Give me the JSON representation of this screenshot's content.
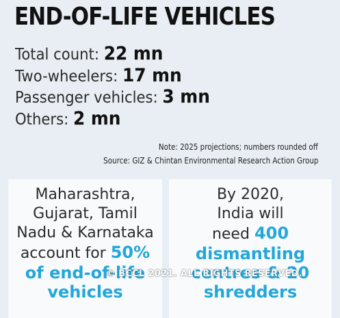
{
  "title": "END-OF-LIFE VEHICLES",
  "stats": [
    {
      "label": "Total count: ",
      "value": "22 mn"
    },
    {
      "label": "Two-wheelers: ",
      "value": "17 mn"
    },
    {
      "label": "Passenger vehicles: ",
      "value": "3 mn"
    },
    {
      "label": "Others: ",
      "value": "2 mn"
    }
  ],
  "note": "Note: 2025 projections; numbers rounded off",
  "source": "Source: GIZ & Chintan Environmental Research Action Group",
  "left_panel": {
    "line1": "Maharashtra,",
    "line2": "Gujarat, Tamil",
    "line3": "Nadu & Karnataka",
    "line4_prefix": "account for ",
    "line4_highlight": "50%",
    "line5": "of end-of-life",
    "line6": "vehicles"
  },
  "right_panel": {
    "line1": "By 2020,",
    "line2": "India will",
    "line3_prefix": "need ",
    "line3_highlight": "400",
    "line4": "dismantling",
    "line5": "centres & 20",
    "line6": "shredders"
  },
  "watermark": "© BCCL 2021. ALL RIGHTS RESERVED.",
  "colors": {
    "background": "#e8eef3",
    "panel": "#f8fafb",
    "highlight": "#23a7da",
    "text": "#2b2b2b"
  }
}
